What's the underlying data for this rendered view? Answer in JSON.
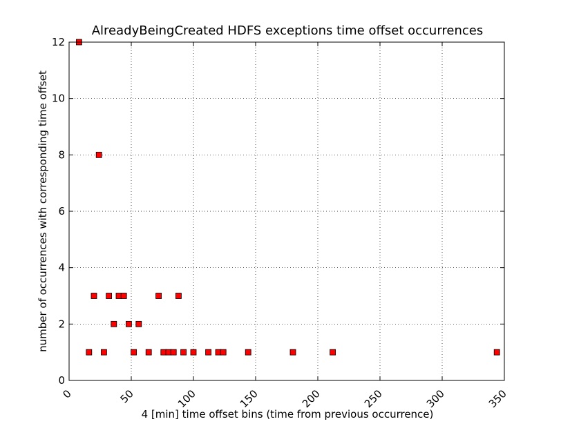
{
  "chart_data": {
    "type": "scatter",
    "title": "AlreadyBeingCreated HDFS exceptions time offset occurrences",
    "xlabel": "4 [min] time offset bins (time from previous occurrence)",
    "ylabel": "number of occurrences with corresponding time offset",
    "xlim": [
      0,
      350
    ],
    "ylim": [
      0,
      12
    ],
    "xticks": [
      0,
      50,
      100,
      150,
      200,
      250,
      300,
      350
    ],
    "yticks": [
      0,
      2,
      4,
      6,
      8,
      10,
      12
    ],
    "xtick_labels": [
      "0",
      "50",
      "100",
      "150",
      "200",
      "250",
      "300",
      "350"
    ],
    "ytick_labels": [
      "0",
      "2",
      "4",
      "6",
      "8",
      "10",
      "12"
    ],
    "grid": true,
    "marker": "square",
    "marker_color": "#ff0000",
    "marker_edge_color": "#000000",
    "points": [
      {
        "x": 8,
        "y": 12
      },
      {
        "x": 16,
        "y": 1
      },
      {
        "x": 20,
        "y": 3
      },
      {
        "x": 24,
        "y": 8
      },
      {
        "x": 28,
        "y": 1
      },
      {
        "x": 32,
        "y": 3
      },
      {
        "x": 36,
        "y": 2
      },
      {
        "x": 40,
        "y": 3
      },
      {
        "x": 44,
        "y": 3
      },
      {
        "x": 48,
        "y": 2
      },
      {
        "x": 52,
        "y": 1
      },
      {
        "x": 56,
        "y": 2
      },
      {
        "x": 64,
        "y": 1
      },
      {
        "x": 72,
        "y": 3
      },
      {
        "x": 76,
        "y": 1
      },
      {
        "x": 80,
        "y": 1
      },
      {
        "x": 84,
        "y": 1
      },
      {
        "x": 88,
        "y": 3
      },
      {
        "x": 92,
        "y": 1
      },
      {
        "x": 100,
        "y": 1
      },
      {
        "x": 112,
        "y": 1
      },
      {
        "x": 120,
        "y": 1
      },
      {
        "x": 124,
        "y": 1
      },
      {
        "x": 144,
        "y": 1
      },
      {
        "x": 180,
        "y": 1
      },
      {
        "x": 212,
        "y": 1
      },
      {
        "x": 344,
        "y": 1
      }
    ]
  }
}
